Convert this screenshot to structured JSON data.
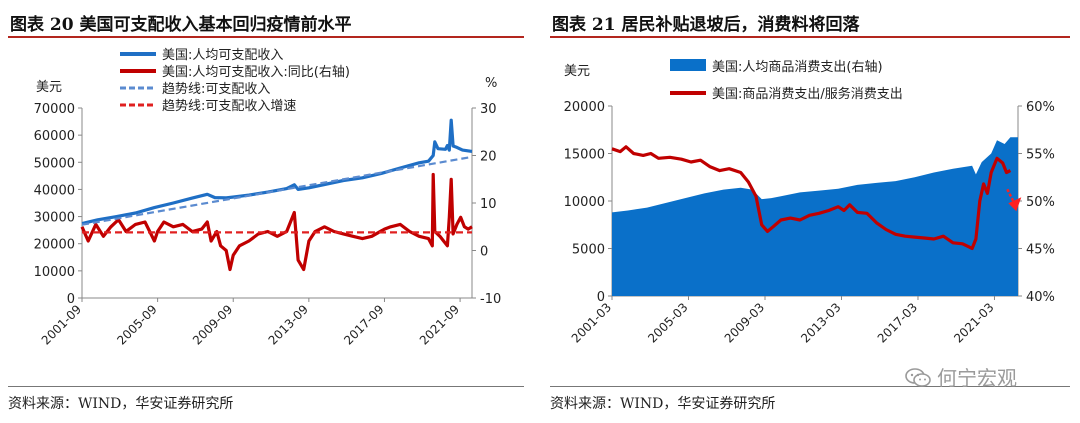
{
  "left": {
    "title": "图表 20 美国可支配收入基本回归疫情前水平",
    "source": "资料来源：WIND，华安证券研究所",
    "chart_data": {
      "type": "line",
      "title": "图表 20 美国可支配收入基本回归疫情前水平",
      "y_left_unit": "美元",
      "y_right_unit": "%",
      "ylim_left": [
        0,
        70000
      ],
      "ylim_right": [
        -10,
        30
      ],
      "yticks_left": [
        "70000",
        "60000",
        "50000",
        "40000",
        "30000",
        "20000",
        "10000",
        "0"
      ],
      "yticks_right": [
        "30",
        "20",
        "10",
        "0",
        "-10"
      ],
      "x_range": [
        2001.67,
        2022.3
      ],
      "xticks": [
        {
          "label": "2001-09",
          "t": 2001.67
        },
        {
          "label": "2005-09",
          "t": 2005.67
        },
        {
          "label": "2009-09",
          "t": 2009.67
        },
        {
          "label": "2013-09",
          "t": 2013.67
        },
        {
          "label": "2017-09",
          "t": 2017.67
        },
        {
          "label": "2021-09",
          "t": 2021.67
        }
      ],
      "legend": [
        "美国:人均可支配收入",
        "美国:人均可支配收入:同比(右轴)",
        "趋势线:可支配收入",
        "趋势线:可支配收入增速"
      ],
      "series": [
        {
          "name": "美国:人均可支配收入",
          "axis": "left",
          "color": "#1f6fc5",
          "style": "solid",
          "points": [
            [
              2001.67,
              27400
            ],
            [
              2002.5,
              28800
            ],
            [
              2003.5,
              30000
            ],
            [
              2004.5,
              31300
            ],
            [
              2005.5,
              33300
            ],
            [
              2006.5,
              35000
            ],
            [
              2007.5,
              36800
            ],
            [
              2008.3,
              38200
            ],
            [
              2008.7,
              37000
            ],
            [
              2009.3,
              36900
            ],
            [
              2009.7,
              37200
            ],
            [
              2010.5,
              37900
            ],
            [
              2011.5,
              39000
            ],
            [
              2012.5,
              40300
            ],
            [
              2012.9,
              41700
            ],
            [
              2013.1,
              40000
            ],
            [
              2013.67,
              40600
            ],
            [
              2014.5,
              41800
            ],
            [
              2015.5,
              43300
            ],
            [
              2016.5,
              44300
            ],
            [
              2017.5,
              45900
            ],
            [
              2018.5,
              47900
            ],
            [
              2019.5,
              49800
            ],
            [
              2020.0,
              50400
            ],
            [
              2020.25,
              52500
            ],
            [
              2020.33,
              57500
            ],
            [
              2020.5,
              55000
            ],
            [
              2020.9,
              54800
            ],
            [
              2021.0,
              56200
            ],
            [
              2021.1,
              54500
            ],
            [
              2021.2,
              65500
            ],
            [
              2021.3,
              56000
            ],
            [
              2021.5,
              55500
            ],
            [
              2021.8,
              54500
            ],
            [
              2022.3,
              54000
            ]
          ]
        },
        {
          "name": "美国:人均可支配收入:同比(右轴)",
          "axis": "right",
          "color": "#c00000",
          "style": "solid",
          "points": [
            [
              2001.67,
              5
            ],
            [
              2002.0,
              2
            ],
            [
              2002.4,
              5.5
            ],
            [
              2002.8,
              3
            ],
            [
              2003.2,
              5
            ],
            [
              2003.6,
              6.5
            ],
            [
              2004.0,
              4
            ],
            [
              2004.5,
              5.5
            ],
            [
              2005.0,
              6
            ],
            [
              2005.5,
              2
            ],
            [
              2005.67,
              4
            ],
            [
              2006.0,
              6
            ],
            [
              2006.5,
              5
            ],
            [
              2007.0,
              5.5
            ],
            [
              2007.5,
              4
            ],
            [
              2008.0,
              4.5
            ],
            [
              2008.3,
              6
            ],
            [
              2008.5,
              2
            ],
            [
              2008.8,
              4
            ],
            [
              2009.0,
              1
            ],
            [
              2009.3,
              0
            ],
            [
              2009.5,
              -4
            ],
            [
              2009.67,
              -1
            ],
            [
              2010.0,
              1
            ],
            [
              2010.5,
              2
            ],
            [
              2011.0,
              3.5
            ],
            [
              2011.5,
              4
            ],
            [
              2012.0,
              3
            ],
            [
              2012.5,
              4
            ],
            [
              2012.9,
              8
            ],
            [
              2013.1,
              -2
            ],
            [
              2013.4,
              -4
            ],
            [
              2013.67,
              2
            ],
            [
              2014.0,
              4
            ],
            [
              2014.5,
              5
            ],
            [
              2015.0,
              4
            ],
            [
              2015.5,
              3.5
            ],
            [
              2016.0,
              3
            ],
            [
              2016.5,
              2.5
            ],
            [
              2017.0,
              3
            ],
            [
              2017.67,
              4.5
            ],
            [
              2018.0,
              5
            ],
            [
              2018.5,
              5.5
            ],
            [
              2019.0,
              4
            ],
            [
              2019.5,
              3
            ],
            [
              2020.0,
              2.5
            ],
            [
              2020.2,
              1
            ],
            [
              2020.25,
              16
            ],
            [
              2020.33,
              4
            ],
            [
              2020.6,
              3
            ],
            [
              2020.8,
              2
            ],
            [
              2021.0,
              1
            ],
            [
              2021.1,
              7
            ],
            [
              2021.2,
              15
            ],
            [
              2021.3,
              3.5
            ],
            [
              2021.5,
              5.5
            ],
            [
              2021.7,
              7
            ],
            [
              2021.9,
              5
            ],
            [
              2022.1,
              4.5
            ],
            [
              2022.3,
              5
            ]
          ]
        },
        {
          "name": "趋势线:可支配收入",
          "axis": "left",
          "color": "#5b8bd0",
          "style": "dashed",
          "points": [
            [
              2001.67,
              27000
            ],
            [
              2022.3,
              52000
            ]
          ]
        },
        {
          "name": "趋势线:可支配收入增速",
          "axis": "right",
          "color": "#e02020",
          "style": "dashed",
          "points": [
            [
              2001.67,
              3.8
            ],
            [
              2022.3,
              3.8
            ]
          ]
        }
      ]
    }
  },
  "right": {
    "title": "图表 21 居民补贴退坡后，消费料将回落",
    "source": "资料来源：WIND，华安证券研究所",
    "chart_data": {
      "type": "area",
      "title": "图表 21 居民补贴退坡后，消费料将回落",
      "y_left_unit": "美元",
      "ylim_left": [
        0,
        20000
      ],
      "ylim_right": [
        40,
        60
      ],
      "yticks_left": [
        "20000",
        "15000",
        "10000",
        "5000",
        "0"
      ],
      "yticks_right": [
        "60%",
        "55%",
        "50%",
        "45%",
        "40%"
      ],
      "x_range": [
        2001.17,
        2022.4
      ],
      "xticks": [
        {
          "label": "2001-03",
          "t": 2001.17
        },
        {
          "label": "2005-03",
          "t": 2005.17
        },
        {
          "label": "2009-03",
          "t": 2009.17
        },
        {
          "label": "2013-03",
          "t": 2013.17
        },
        {
          "label": "2017-03",
          "t": 2017.17
        },
        {
          "label": "2021-03",
          "t": 2021.17
        }
      ],
      "legend": [
        "美国:人均商品消费支出(右轴)",
        "美国:商品消费支出/服务消费支出"
      ],
      "arrow_color": "#ff2020",
      "series": [
        {
          "name": "美国:人均商品消费支出(右轴)",
          "axis": "left",
          "color": "#0a70c9",
          "style": "area",
          "points": [
            [
              2001.17,
              8800
            ],
            [
              2002.0,
              9000
            ],
            [
              2003.0,
              9300
            ],
            [
              2004.0,
              9800
            ],
            [
              2005.0,
              10300
            ],
            [
              2006.0,
              10800
            ],
            [
              2007.0,
              11200
            ],
            [
              2007.9,
              11400
            ],
            [
              2008.5,
              11200
            ],
            [
              2009.0,
              10200
            ],
            [
              2009.5,
              10300
            ],
            [
              2010.0,
              10500
            ],
            [
              2011.0,
              10900
            ],
            [
              2012.0,
              11100
            ],
            [
              2013.0,
              11300
            ],
            [
              2014.0,
              11700
            ],
            [
              2015.0,
              11900
            ],
            [
              2016.0,
              12100
            ],
            [
              2017.0,
              12500
            ],
            [
              2018.0,
              13000
            ],
            [
              2019.0,
              13400
            ],
            [
              2020.0,
              13700
            ],
            [
              2020.2,
              12800
            ],
            [
              2020.5,
              14100
            ],
            [
              2021.0,
              15000
            ],
            [
              2021.3,
              16400
            ],
            [
              2021.7,
              16000
            ],
            [
              2022.0,
              16700
            ],
            [
              2022.4,
              16700
            ]
          ]
        },
        {
          "name": "美国:商品消费支出/服务消费支出",
          "axis": "right",
          "color": "#c00000",
          "style": "solid",
          "points": [
            [
              2001.17,
              55.5
            ],
            [
              2001.6,
              55.2
            ],
            [
              2001.9,
              55.7
            ],
            [
              2002.3,
              55.0
            ],
            [
              2002.8,
              54.8
            ],
            [
              2003.2,
              55.0
            ],
            [
              2003.6,
              54.5
            ],
            [
              2004.2,
              54.6
            ],
            [
              2004.8,
              54.4
            ],
            [
              2005.3,
              54.1
            ],
            [
              2005.8,
              54.3
            ],
            [
              2006.3,
              53.6
            ],
            [
              2006.8,
              53.2
            ],
            [
              2007.3,
              53.4
            ],
            [
              2007.9,
              53.0
            ],
            [
              2008.3,
              52.0
            ],
            [
              2008.7,
              50.5
            ],
            [
              2009.0,
              47.5
            ],
            [
              2009.3,
              46.8
            ],
            [
              2009.6,
              47.3
            ],
            [
              2010.0,
              48.0
            ],
            [
              2010.5,
              48.2
            ],
            [
              2011.0,
              48.0
            ],
            [
              2011.5,
              48.5
            ],
            [
              2012.0,
              48.7
            ],
            [
              2012.5,
              49.0
            ],
            [
              2013.0,
              49.4
            ],
            [
              2013.3,
              49.0
            ],
            [
              2013.6,
              49.6
            ],
            [
              2014.0,
              48.8
            ],
            [
              2014.5,
              48.7
            ],
            [
              2015.0,
              47.7
            ],
            [
              2015.5,
              47.0
            ],
            [
              2016.0,
              46.5
            ],
            [
              2016.5,
              46.3
            ],
            [
              2017.0,
              46.2
            ],
            [
              2017.5,
              46.1
            ],
            [
              2018.0,
              46.0
            ],
            [
              2018.5,
              46.3
            ],
            [
              2019.0,
              45.6
            ],
            [
              2019.5,
              45.5
            ],
            [
              2019.8,
              45.2
            ],
            [
              2020.0,
              45.0
            ],
            [
              2020.2,
              46.0
            ],
            [
              2020.4,
              50.0
            ],
            [
              2020.6,
              51.8
            ],
            [
              2020.8,
              50.8
            ],
            [
              2021.0,
              53.0
            ],
            [
              2021.3,
              54.5
            ],
            [
              2021.6,
              54.0
            ],
            [
              2021.8,
              53.0
            ],
            [
              2022.0,
              53.2
            ]
          ]
        }
      ]
    }
  },
  "watermark": {
    "text": "何宁宏观",
    "icon": "wechat-icon"
  }
}
